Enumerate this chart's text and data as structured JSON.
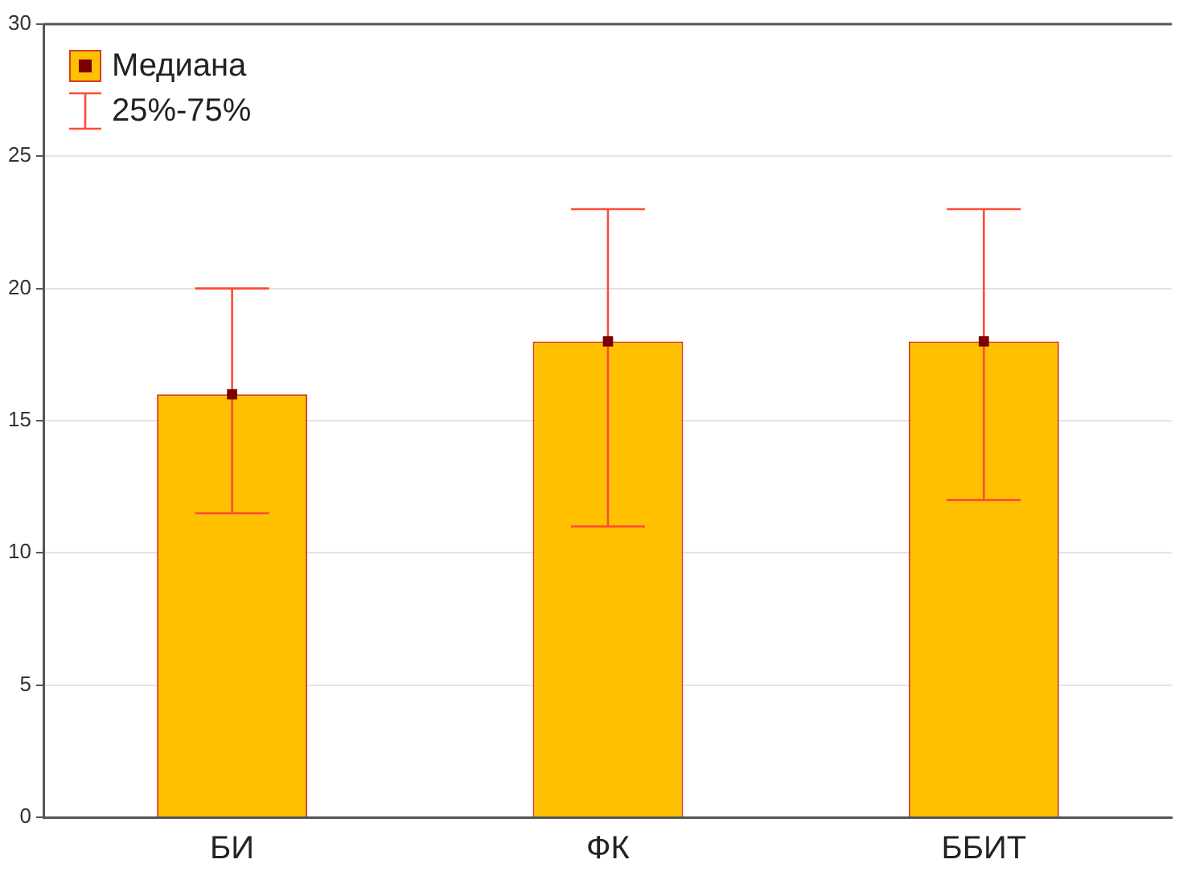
{
  "chart_data": {
    "type": "bar",
    "categories": [
      "БИ",
      "ФК",
      "ББИТ"
    ],
    "series": [
      {
        "name": "Медиана",
        "type": "bar",
        "color": "#ffc000",
        "values": [
          16,
          18,
          18
        ],
        "errors": [
          [
            11.5,
            20
          ],
          [
            11,
            23
          ],
          [
            12,
            23
          ]
        ]
      },
      {
        "type": "scatter",
        "color": "#7a0000",
        "x": [
          "БИ",
          "ФК",
          "ББИТ"
        ],
        "values": [
          16,
          18,
          18
        ]
      }
    ],
    "annotations": [
      "25%-75%"
    ],
    "ylim": [
      0,
      30
    ],
    "yticks": [
      0,
      5,
      10,
      15,
      20,
      25,
      30
    ],
    "grid": "y",
    "legend": "top left",
    "marker": "square"
  }
}
